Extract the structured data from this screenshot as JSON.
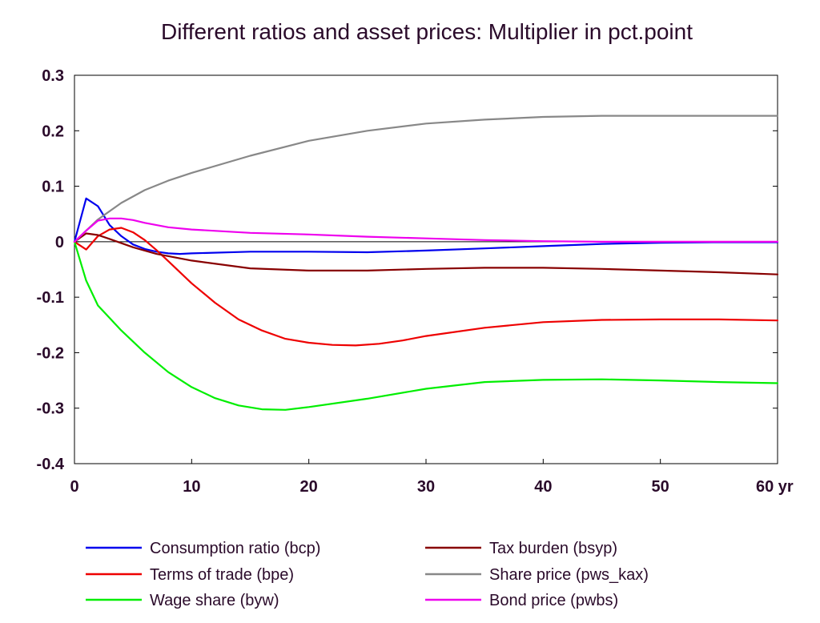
{
  "chart_data": {
    "type": "line",
    "title": "Different ratios and asset prices: Multiplier in pct.point",
    "xlim": [
      0,
      60
    ],
    "ylim": [
      -0.4,
      0.3
    ],
    "x_ticks": [
      0,
      10,
      20,
      30,
      40,
      50,
      60
    ],
    "x_tick_labels": [
      "0",
      "10",
      "20",
      "30",
      "40",
      "50",
      "60 yr"
    ],
    "y_ticks": [
      -0.4,
      -0.3,
      -0.2,
      -0.1,
      0,
      0.1,
      0.2,
      0.3
    ],
    "y_tick_labels": [
      "-0.4",
      "-0.3",
      "-0.2",
      "-0.1",
      "0",
      "0.1",
      "0.2",
      "0.3"
    ],
    "zero_line": true,
    "grid": false,
    "legend_position": "bottom",
    "series": [
      {
        "name": "Consumption ratio (bcp)",
        "color": "#0000ee",
        "points": [
          [
            0,
            0
          ],
          [
            1,
            0.078
          ],
          [
            2,
            0.064
          ],
          [
            3,
            0.03
          ],
          [
            4,
            0.01
          ],
          [
            5,
            -0.005
          ],
          [
            6,
            -0.013
          ],
          [
            7,
            -0.018
          ],
          [
            8,
            -0.021
          ],
          [
            9,
            -0.022
          ],
          [
            10,
            -0.021
          ],
          [
            15,
            -0.018
          ],
          [
            20,
            -0.018
          ],
          [
            25,
            -0.019
          ],
          [
            30,
            -0.016
          ],
          [
            35,
            -0.012
          ],
          [
            40,
            -0.008
          ],
          [
            45,
            -0.004
          ],
          [
            50,
            -0.002
          ],
          [
            55,
            -0.001
          ],
          [
            60,
            -0.001
          ]
        ]
      },
      {
        "name": "Terms of trade (bpe)",
        "color": "#ee0000",
        "points": [
          [
            0,
            0
          ],
          [
            1,
            -0.014
          ],
          [
            2,
            0.01
          ],
          [
            3,
            0.022
          ],
          [
            4,
            0.025
          ],
          [
            5,
            0.017
          ],
          [
            6,
            0.003
          ],
          [
            7,
            -0.015
          ],
          [
            8,
            -0.035
          ],
          [
            10,
            -0.075
          ],
          [
            12,
            -0.11
          ],
          [
            14,
            -0.14
          ],
          [
            16,
            -0.16
          ],
          [
            18,
            -0.175
          ],
          [
            20,
            -0.182
          ],
          [
            22,
            -0.186
          ],
          [
            24,
            -0.187
          ],
          [
            26,
            -0.184
          ],
          [
            28,
            -0.178
          ],
          [
            30,
            -0.17
          ],
          [
            35,
            -0.155
          ],
          [
            40,
            -0.145
          ],
          [
            45,
            -0.141
          ],
          [
            50,
            -0.14
          ],
          [
            55,
            -0.14
          ],
          [
            60,
            -0.142
          ]
        ]
      },
      {
        "name": "Wage share (byw)",
        "color": "#00ee00",
        "points": [
          [
            0,
            0
          ],
          [
            1,
            -0.07
          ],
          [
            2,
            -0.115
          ],
          [
            4,
            -0.16
          ],
          [
            6,
            -0.2
          ],
          [
            8,
            -0.235
          ],
          [
            10,
            -0.262
          ],
          [
            12,
            -0.282
          ],
          [
            14,
            -0.295
          ],
          [
            16,
            -0.302
          ],
          [
            18,
            -0.303
          ],
          [
            20,
            -0.298
          ],
          [
            25,
            -0.283
          ],
          [
            30,
            -0.265
          ],
          [
            35,
            -0.253
          ],
          [
            40,
            -0.249
          ],
          [
            45,
            -0.248
          ],
          [
            50,
            -0.25
          ],
          [
            55,
            -0.253
          ],
          [
            60,
            -0.255
          ]
        ]
      },
      {
        "name": "Tax burden (bsyp)",
        "color": "#880000",
        "points": [
          [
            0,
            0
          ],
          [
            1,
            0.015
          ],
          [
            2,
            0.012
          ],
          [
            3,
            0.005
          ],
          [
            5,
            -0.01
          ],
          [
            7,
            -0.022
          ],
          [
            10,
            -0.034
          ],
          [
            15,
            -0.048
          ],
          [
            20,
            -0.052
          ],
          [
            25,
            -0.052
          ],
          [
            30,
            -0.049
          ],
          [
            35,
            -0.047
          ],
          [
            40,
            -0.047
          ],
          [
            45,
            -0.049
          ],
          [
            50,
            -0.052
          ],
          [
            55,
            -0.055
          ],
          [
            60,
            -0.059
          ]
        ]
      },
      {
        "name": "Share price (pws_kax)",
        "color": "#888888",
        "points": [
          [
            0,
            0
          ],
          [
            2,
            0.04
          ],
          [
            4,
            0.07
          ],
          [
            6,
            0.093
          ],
          [
            8,
            0.11
          ],
          [
            10,
            0.124
          ],
          [
            15,
            0.155
          ],
          [
            20,
            0.182
          ],
          [
            25,
            0.2
          ],
          [
            30,
            0.213
          ],
          [
            35,
            0.22
          ],
          [
            40,
            0.225
          ],
          [
            45,
            0.227
          ],
          [
            50,
            0.227
          ],
          [
            55,
            0.227
          ],
          [
            60,
            0.227
          ]
        ]
      },
      {
        "name": "Bond price (pwbs)",
        "color": "#ee00ee",
        "points": [
          [
            0,
            0
          ],
          [
            1,
            0.02
          ],
          [
            2,
            0.038
          ],
          [
            3,
            0.042
          ],
          [
            4,
            0.042
          ],
          [
            5,
            0.039
          ],
          [
            6,
            0.034
          ],
          [
            8,
            0.026
          ],
          [
            10,
            0.022
          ],
          [
            15,
            0.016
          ],
          [
            20,
            0.013
          ],
          [
            25,
            0.009
          ],
          [
            30,
            0.006
          ],
          [
            35,
            0.003
          ],
          [
            40,
            0.001
          ],
          [
            45,
            0.0
          ],
          [
            50,
            0.0
          ],
          [
            55,
            0.0
          ],
          [
            60,
            0.0
          ]
        ]
      }
    ]
  }
}
